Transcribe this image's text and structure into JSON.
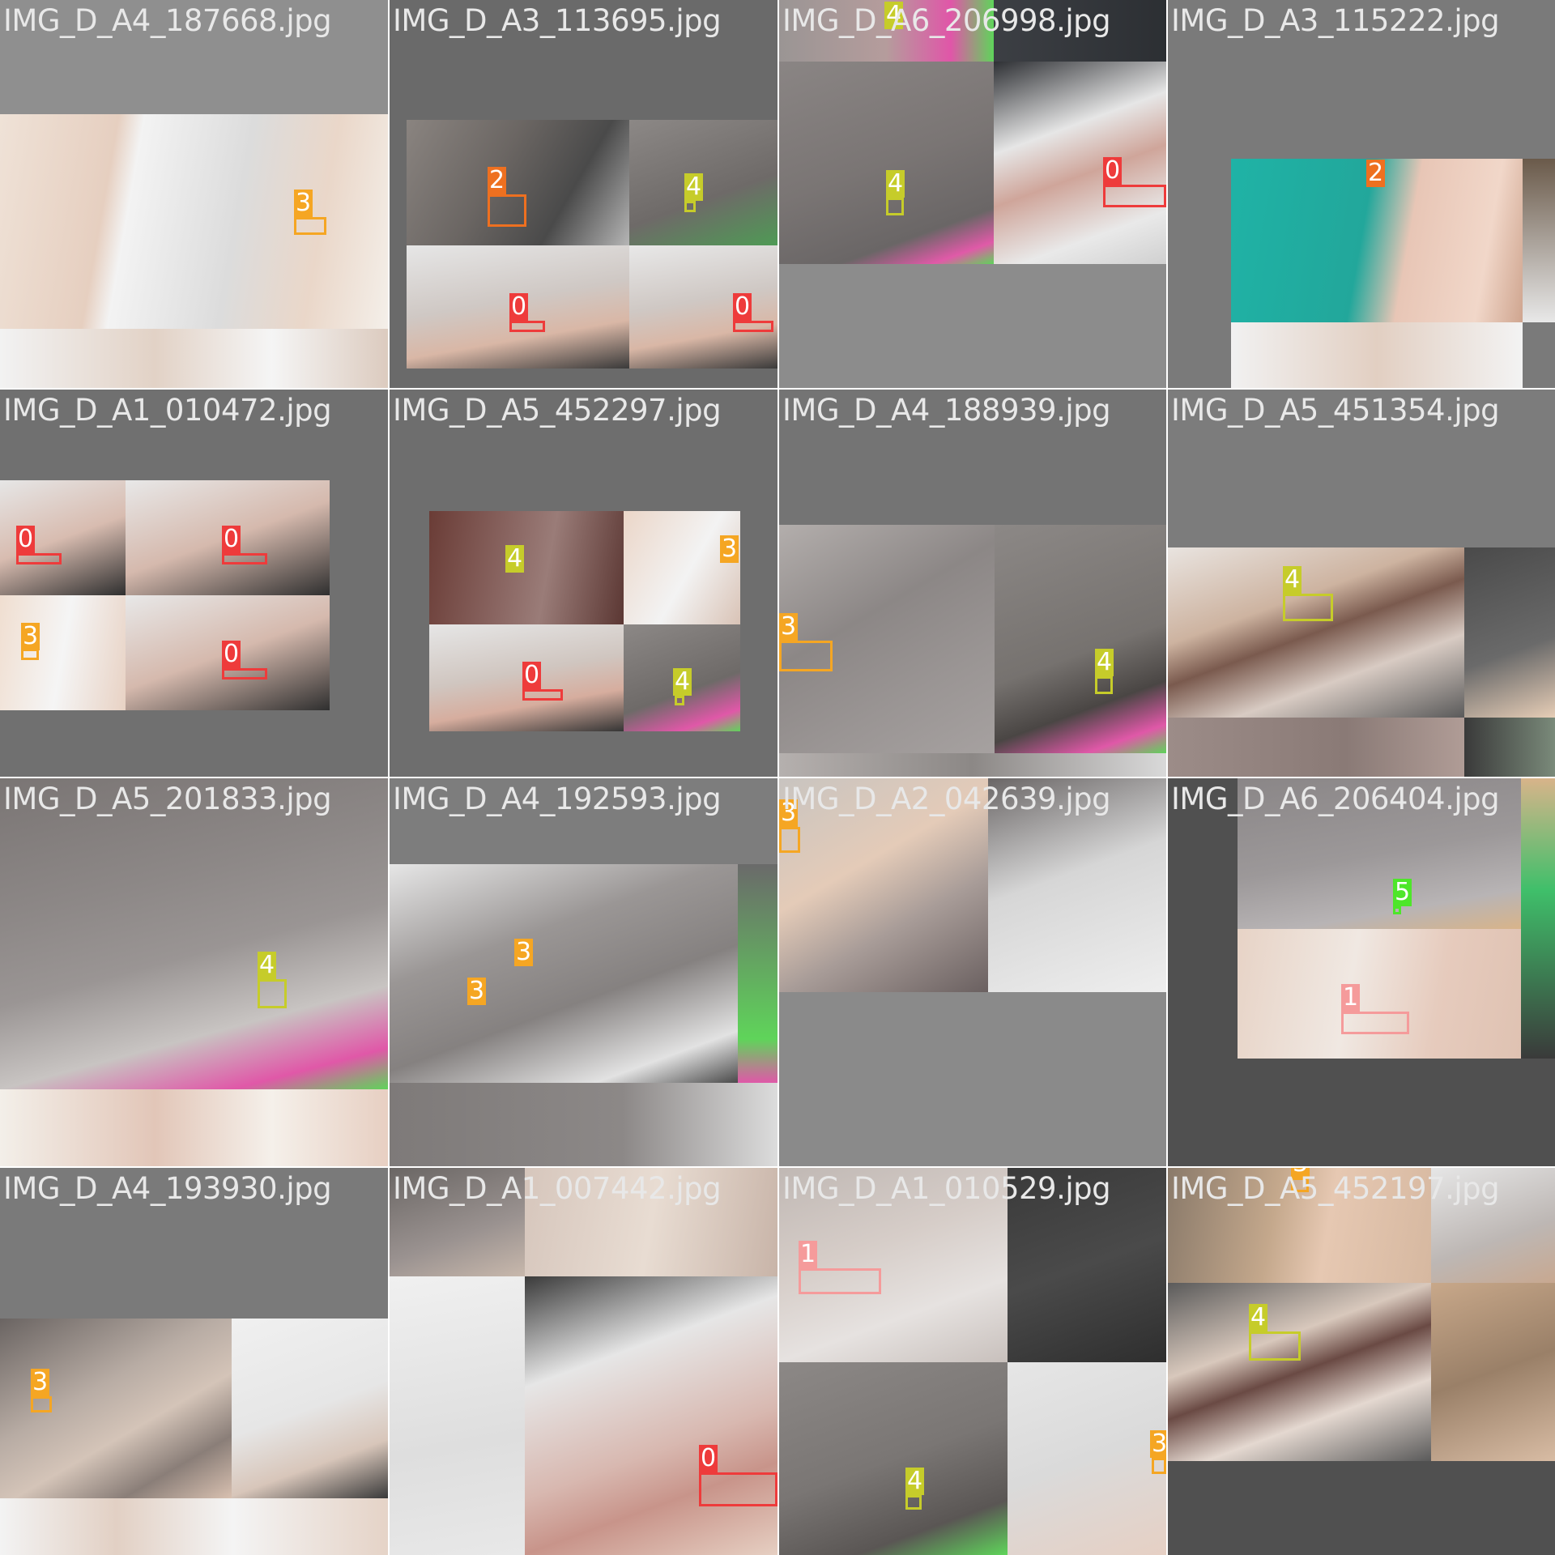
{
  "class_colors": {
    "0": "#ee3b3b",
    "1": "#f59b9b",
    "2": "#ee7020",
    "3": "#f5a623",
    "4": "#c6cc2a",
    "5": "#4ee62a"
  },
  "tiles": [
    {
      "filename": "IMG_D_A4_187668.jpg",
      "bg": "#8f8f8f"
    },
    {
      "filename": "IMG_D_A3_113695.jpg",
      "bg": "#6a6a6a"
    },
    {
      "filename": "IMG_D_A6_206998.jpg",
      "bg": "#8c8c8c"
    },
    {
      "filename": "IMG_D_A3_115222.jpg",
      "bg": "#7a7a7a"
    },
    {
      "filename": "IMG_D_A1_010472.jpg",
      "bg": "#707070"
    },
    {
      "filename": "IMG_D_A5_452297.jpg",
      "bg": "#6e6e6e"
    },
    {
      "filename": "IMG_D_A4_188939.jpg",
      "bg": "#747474"
    },
    {
      "filename": "IMG_D_A5_451354.jpg",
      "bg": "#7c7c7c"
    },
    {
      "filename": "IMG_D_A5_201833.jpg",
      "bg": "#7a7a7a"
    },
    {
      "filename": "IMG_D_A4_192593.jpg",
      "bg": "#7d7d7d"
    },
    {
      "filename": "IMG_D_A2_042639.jpg",
      "bg": "#8a8a8a"
    },
    {
      "filename": "IMG_D_A6_206404.jpg",
      "bg": "#505050"
    },
    {
      "filename": "IMG_D_A4_193930.jpg",
      "bg": "#7a7a7a"
    },
    {
      "filename": "IMG_D_A1_007442.jpg",
      "bg": "#6f6f6f"
    },
    {
      "filename": "IMG_D_A1_010529.jpg",
      "bg": "#7a7a7a"
    },
    {
      "filename": "IMG_D_A5_452197.jpg",
      "bg": "#505050"
    }
  ]
}
